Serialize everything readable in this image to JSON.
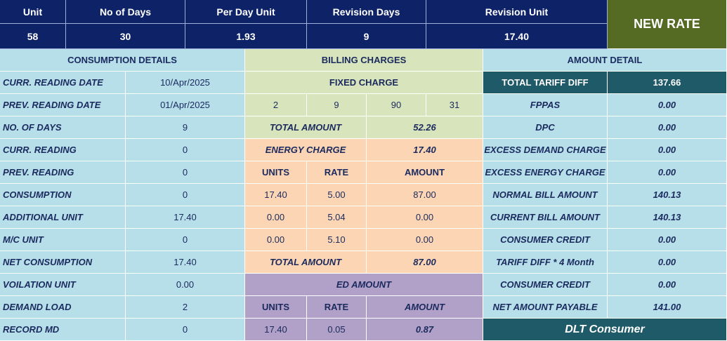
{
  "header": {
    "unit_label": "Unit",
    "unit_value": "58",
    "days_label": "No of Days",
    "days_value": "30",
    "per_day_label": "Per Day Unit",
    "per_day_value": "1.93",
    "rev_days_label": "Revision Days",
    "rev_days_value": "9",
    "rev_unit_label": "Revision Unit",
    "rev_unit_value": "17.40",
    "new_rate_button": "NEW RATE"
  },
  "consumption": {
    "title": "CONSUMPTION DETAILS",
    "rows": [
      {
        "label": "CURR. READING DATE",
        "value": "10/Apr/2025"
      },
      {
        "label": "PREV. READING DATE",
        "value": "01/Apr/2025"
      },
      {
        "label": "NO. OF DAYS",
        "value": "9"
      },
      {
        "label": "CURR. READING",
        "value": "0"
      },
      {
        "label": "PREV. READING",
        "value": "0"
      },
      {
        "label": "CONSUMPTION",
        "value": "0"
      },
      {
        "label": "ADDITIONAL UNIT",
        "value": "17.40"
      },
      {
        "label": "M/C UNIT",
        "value": "0"
      },
      {
        "label": "NET CONSUMPTION",
        "value": "17.40"
      },
      {
        "label": "VOILATION UNIT",
        "value": "0.00"
      },
      {
        "label": "DEMAND LOAD",
        "value": "2"
      },
      {
        "label": "RECORD MD",
        "value": "0"
      }
    ]
  },
  "billing": {
    "title": "BILLING CHARGES",
    "fixed_charge_label": "FIXED CHARGE",
    "fixed_values": [
      "2",
      "9",
      "90",
      "31"
    ],
    "fixed_total_label": "TOTAL AMOUNT",
    "fixed_total_value": "52.26",
    "energy_label": "ENERGY CHARGE",
    "energy_value": "17.40",
    "energy_cols": [
      "UNITS",
      "RATE",
      "AMOUNT"
    ],
    "energy_rows": [
      [
        "17.40",
        "5.00",
        "87.00"
      ],
      [
        "0.00",
        "5.04",
        "0.00"
      ],
      [
        "0.00",
        "5.10",
        "0.00"
      ]
    ],
    "energy_total_label": "TOTAL AMOUNT",
    "energy_total_value": "87.00",
    "ed_label": "ED AMOUNT",
    "ed_cols": [
      "UNITS",
      "RATE",
      "AMOUNT"
    ],
    "ed_row": [
      "17.40",
      "0.05",
      "0.87"
    ]
  },
  "amount": {
    "title": "AMOUNT DETAIL",
    "rows": [
      {
        "label": "TOTAL TARIFF DIFF",
        "value": "137.66"
      },
      {
        "label": "FPPAS",
        "value": "0.00"
      },
      {
        "label": "DPC",
        "value": "0.00"
      },
      {
        "label": "EXCESS DEMAND CHARGE",
        "value": "0.00"
      },
      {
        "label": "EXCESS ENERGY CHARGE",
        "value": "0.00"
      },
      {
        "label": "NORMAL BILL AMOUNT",
        "value": "140.13"
      },
      {
        "label": "CURRENT BILL AMOUNT",
        "value": "140.13"
      },
      {
        "label": "CONSUMER CREDIT",
        "value": "0.00"
      },
      {
        "label": "TARIFF DIFF * 4 Month",
        "value": "0.00"
      },
      {
        "label": "CONSUMER CREDIT",
        "value": "0.00"
      },
      {
        "label": "NET AMOUNT PAYABLE",
        "value": "141.00"
      }
    ],
    "footer": "DLT Consumer"
  }
}
